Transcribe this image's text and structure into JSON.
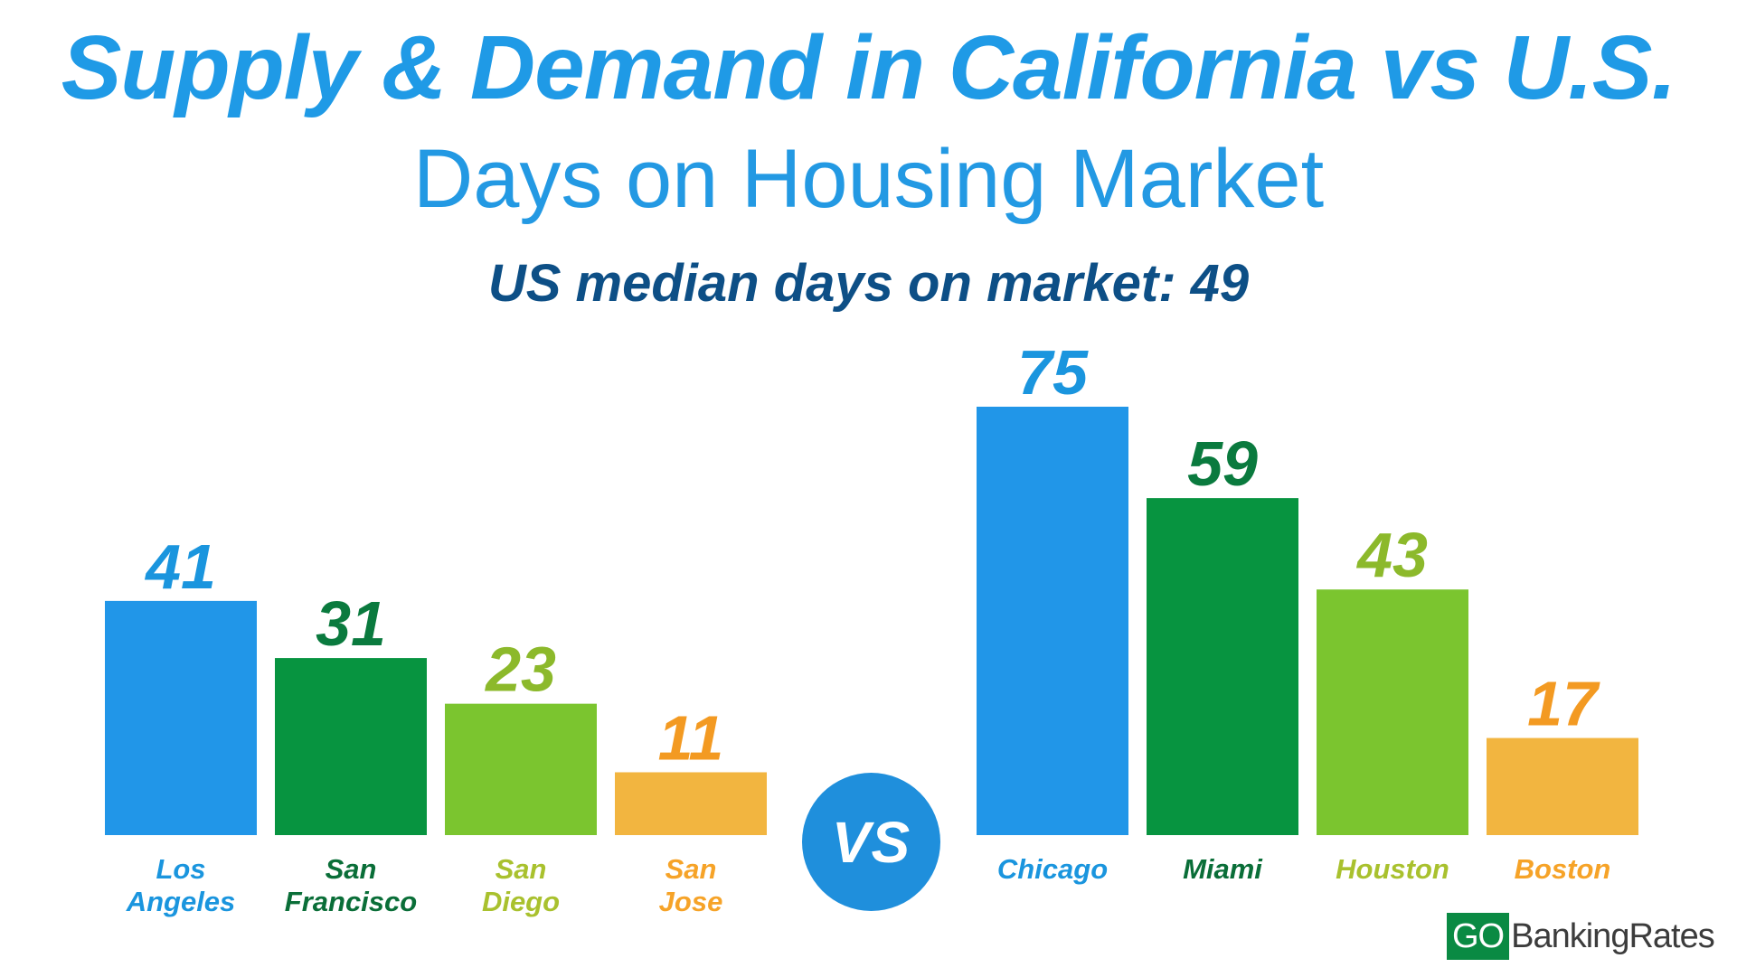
{
  "header": {
    "title": "Supply & Demand in California vs U.S.",
    "subtitle": "Days on Housing Market",
    "median_label": "US median days on market: 49"
  },
  "vs_label": "VS",
  "logo": {
    "go": "GO",
    "rest": "BankingRates"
  },
  "chart_data": {
    "type": "bar",
    "categories": [
      "Los Angeles",
      "San Francisco",
      "San Diego",
      "San Jose",
      "Chicago",
      "Miami",
      "Houston",
      "Boston"
    ],
    "label_lines": [
      [
        "Los",
        "Angeles"
      ],
      [
        "San",
        "Francisco"
      ],
      [
        "San",
        "Diego"
      ],
      [
        "San",
        "Jose"
      ],
      [
        "Chicago"
      ],
      [
        "Miami"
      ],
      [
        "Houston"
      ],
      [
        "Boston"
      ]
    ],
    "values": [
      41,
      31,
      23,
      11,
      75,
      59,
      43,
      17
    ],
    "colors": [
      "#2196e8",
      "#079440",
      "#7bc52f",
      "#f2b540",
      "#2196e8",
      "#079440",
      "#7bc52f",
      "#f2b540"
    ],
    "value_label_colors": [
      "#1a95de",
      "#0a7a3e",
      "#8cb92b",
      "#f39a22",
      "#1a95de",
      "#0a7a3e",
      "#8cb92b",
      "#f39a22"
    ],
    "category_label_colors": [
      "#1a95de",
      "#0a6e38",
      "#a9c12e",
      "#f6a328",
      "#1a95de",
      "#0a6e38",
      "#a9c12e",
      "#f6a328"
    ],
    "groups": [
      {
        "categories": [
          "Los Angeles",
          "San Francisco",
          "San Diego",
          "San Jose"
        ]
      },
      {
        "categories": [
          "Chicago",
          "Miami",
          "Houston",
          "Boston"
        ]
      }
    ],
    "xlabel": "",
    "ylabel": "",
    "grid": false,
    "legend": "none"
  }
}
